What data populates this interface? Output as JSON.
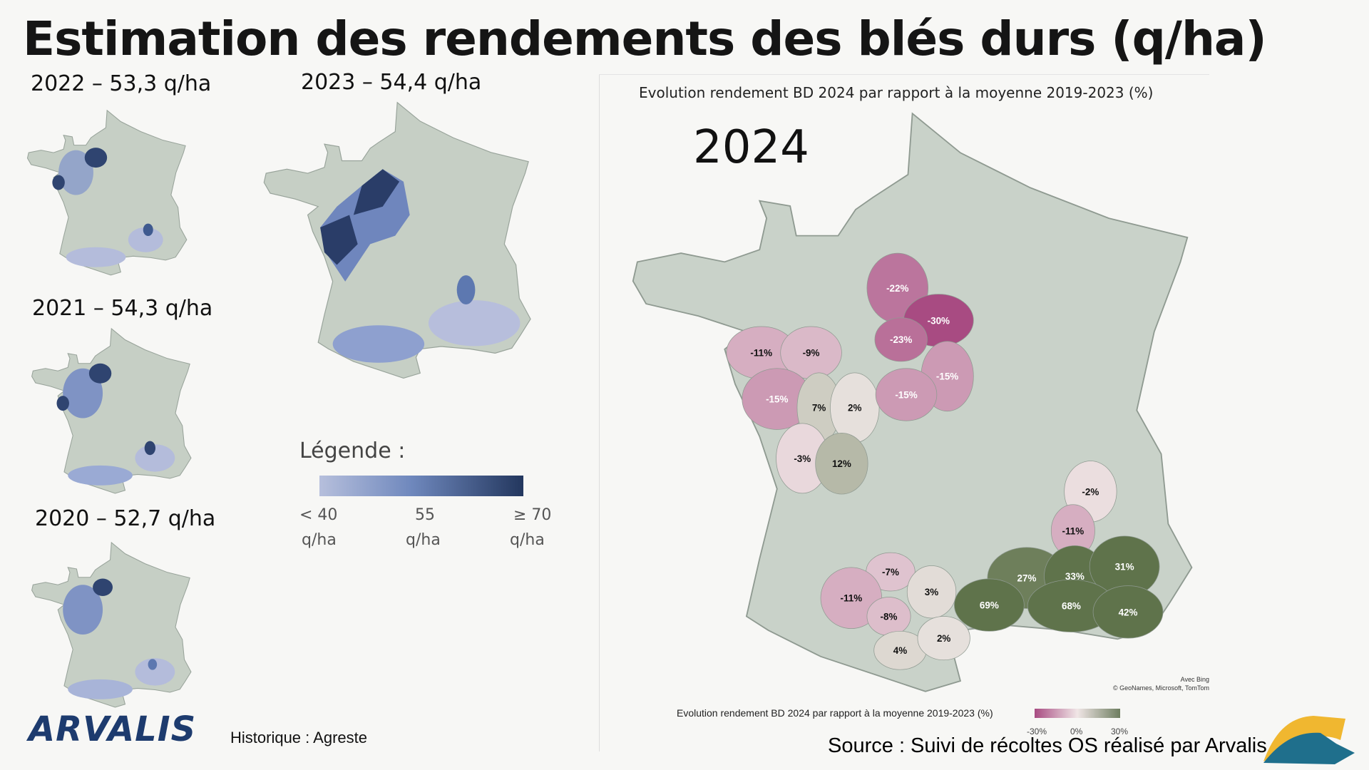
{
  "title": "Estimation des rendements des blés durs (q/ha)",
  "history_maps": [
    {
      "label": "2022 – 53,3 q/ha",
      "year": 2022,
      "yield": 53.3
    },
    {
      "label": "2023 – 54,4 q/ha",
      "year": 2023,
      "yield": 54.4
    },
    {
      "label": "2021 – 54,3 q/ha",
      "year": 2021,
      "yield": 54.3
    },
    {
      "label": "2020 – 52,7 q/ha",
      "year": 2020,
      "yield": 52.7
    }
  ],
  "legend": {
    "title": "Légende :",
    "min_label": "< 40",
    "mid_label": "55",
    "max_label": "≥ 70",
    "unit": "q/ha",
    "colors": [
      "#b6bfdc",
      "#6f88bd",
      "#23375e"
    ]
  },
  "map_2024": {
    "chart_title": "Evolution rendement BD 2024 par rapport à la moyenne 2019-2023 (%)",
    "year": "2024",
    "attribution_1": "Avec Bing",
    "attribution_2": "© GeoNames, Microsoft, TomTom",
    "regions": [
      {
        "label": "-22%",
        "value": -22
      },
      {
        "label": "-30%",
        "value": -30
      },
      {
        "label": "-23%",
        "value": -23
      },
      {
        "label": "-11%",
        "value": -11
      },
      {
        "label": "-9%",
        "value": -9
      },
      {
        "label": "-15%",
        "value": -15
      },
      {
        "label": "-15%",
        "value": -15
      },
      {
        "label": "7%",
        "value": 7
      },
      {
        "label": "2%",
        "value": 2
      },
      {
        "label": "-15%",
        "value": -15
      },
      {
        "label": "-3%",
        "value": -3
      },
      {
        "label": "12%",
        "value": 12
      },
      {
        "label": "-2%",
        "value": -2
      },
      {
        "label": "-11%",
        "value": -11
      },
      {
        "label": "-7%",
        "value": -7
      },
      {
        "label": "3%",
        "value": 3
      },
      {
        "label": "-11%",
        "value": -11
      },
      {
        "label": "-8%",
        "value": -8
      },
      {
        "label": "27%",
        "value": 27
      },
      {
        "label": "33%",
        "value": 33
      },
      {
        "label": "31%",
        "value": 31
      },
      {
        "label": "69%",
        "value": 69
      },
      {
        "label": "68%",
        "value": 68
      },
      {
        "label": "42%",
        "value": 42
      },
      {
        "label": "4%",
        "value": 4
      },
      {
        "label": "2%",
        "value": 2
      }
    ],
    "scale": {
      "text": "Evolution rendement BD 2024 par rapport à la moyenne 2019-2023 (%)",
      "min_label": "-30%",
      "mid_label": "0%",
      "max_label": "30%",
      "colors": [
        "#a84b82",
        "#f0e6e6",
        "#6d7d5f"
      ]
    }
  },
  "footer": {
    "logo_text": "ARVALIS",
    "historique": "Historique : Agreste",
    "source": "Source : Suivi de récoltes OS réalisé par Arvalis"
  }
}
